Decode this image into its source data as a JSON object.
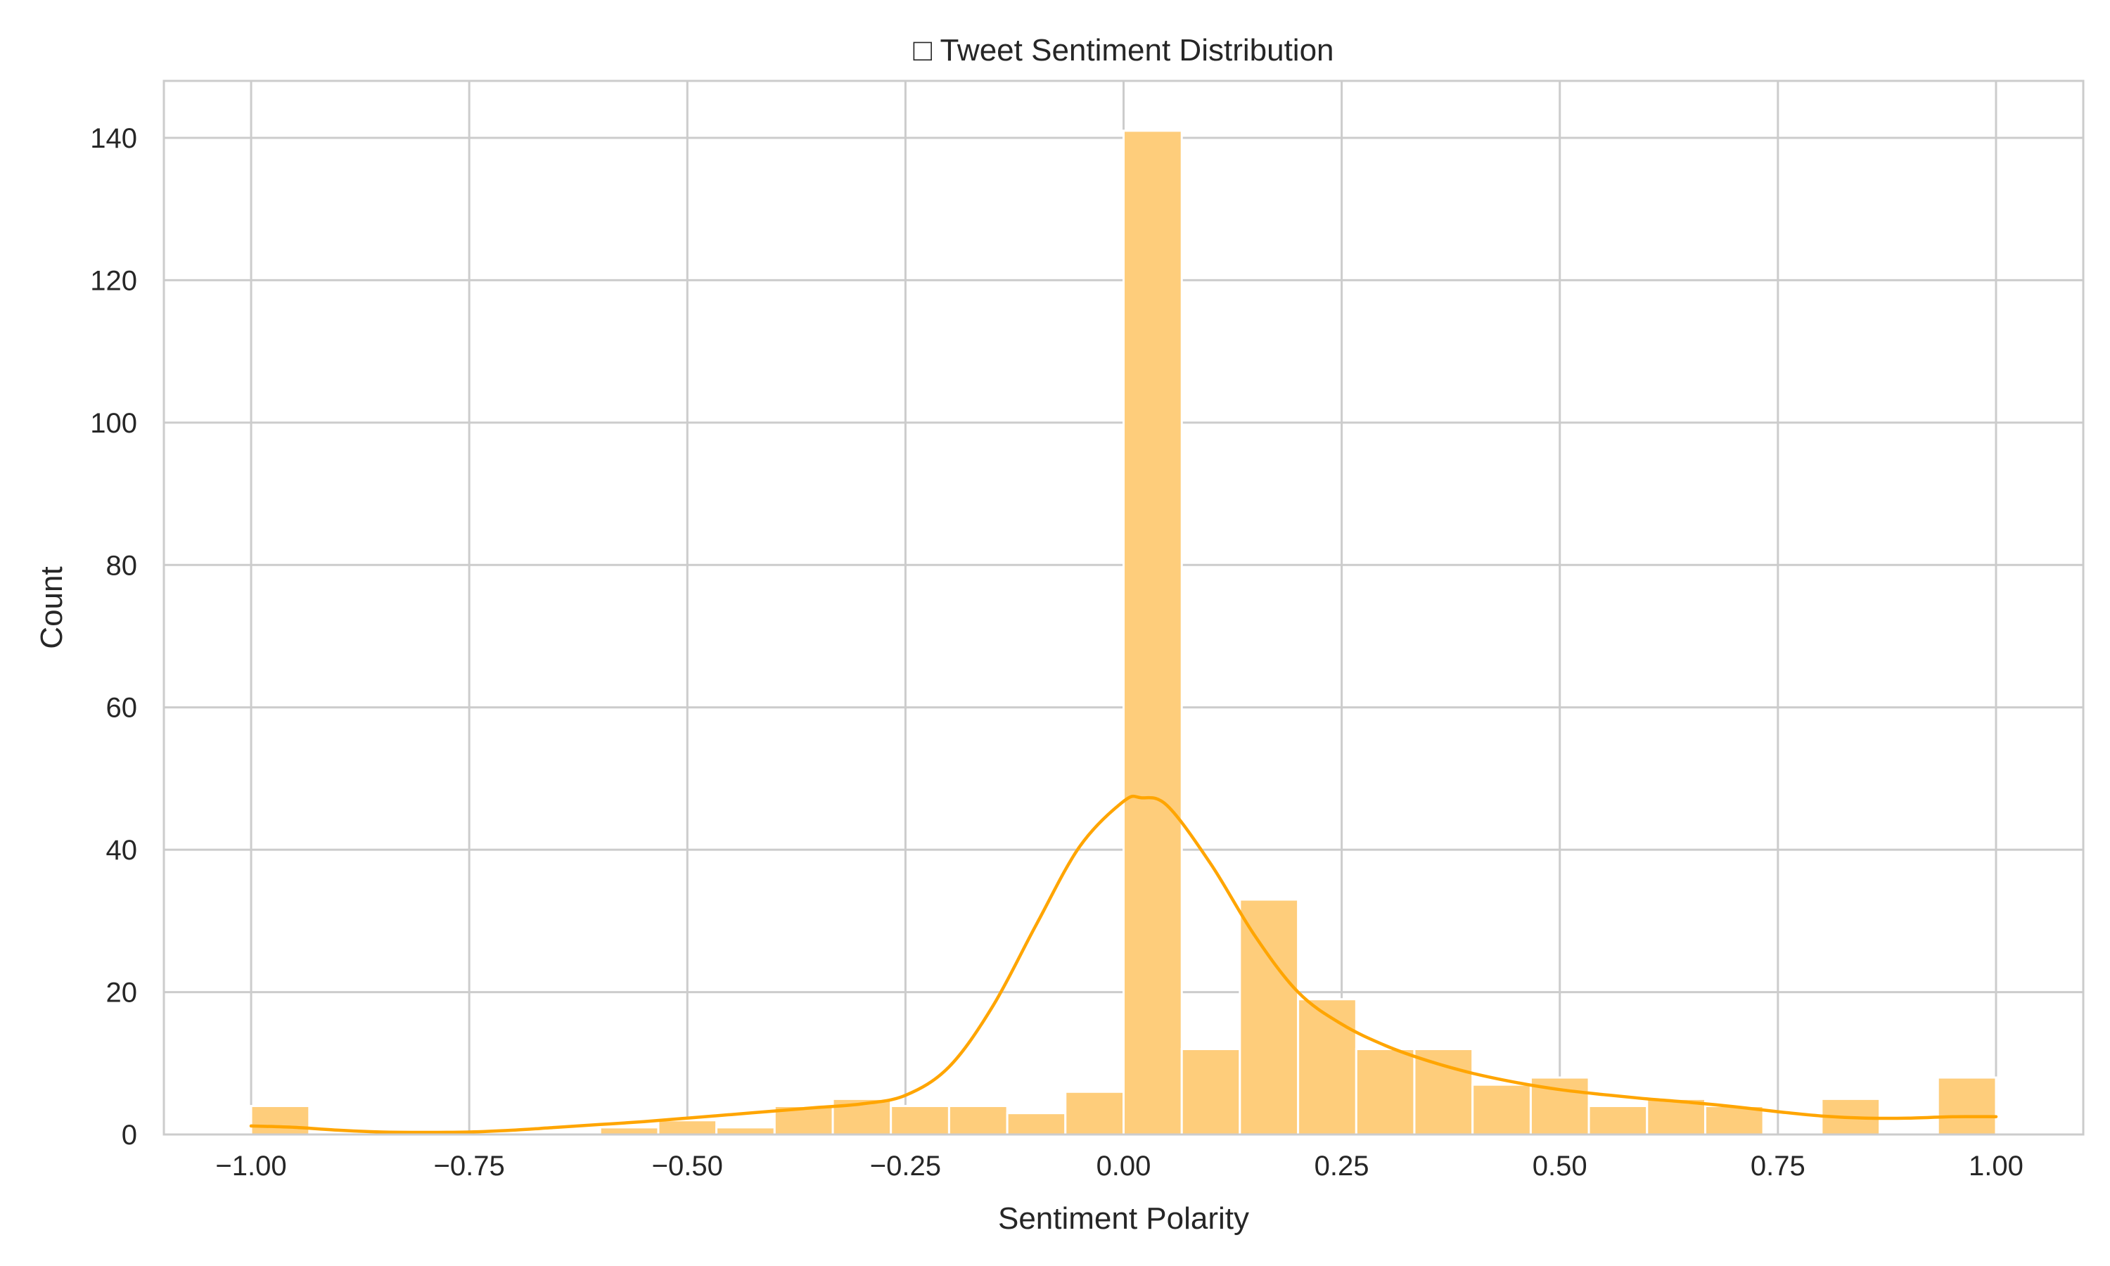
{
  "chart_data": {
    "type": "bar",
    "title": "□ Tweet Sentiment Distribution",
    "xlabel": "Sentiment Polarity",
    "ylabel": "Count",
    "xlim": [
      -1.1,
      1.1
    ],
    "ylim": [
      0,
      148
    ],
    "xticks": [
      -1.0,
      -0.75,
      -0.5,
      -0.25,
      0.0,
      0.25,
      0.5,
      0.75,
      1.0
    ],
    "xtick_labels": [
      "−1.00",
      "−0.75",
      "−0.50",
      "−0.25",
      "0.00",
      "0.25",
      "0.50",
      "0.75",
      "1.00"
    ],
    "yticks": [
      0,
      20,
      40,
      60,
      80,
      100,
      120,
      140
    ],
    "ytick_labels": [
      "0",
      "20",
      "40",
      "60",
      "80",
      "100",
      "120",
      "140"
    ],
    "grid": true,
    "bin_width": 0.0667,
    "bins": [
      {
        "x0": -1.0,
        "x1": -0.9333,
        "count": 4
      },
      {
        "x0": -0.9333,
        "x1": -0.8667,
        "count": 0
      },
      {
        "x0": -0.8667,
        "x1": -0.8,
        "count": 0
      },
      {
        "x0": -0.8,
        "x1": -0.7333,
        "count": 0
      },
      {
        "x0": -0.7333,
        "x1": -0.6667,
        "count": 0
      },
      {
        "x0": -0.6667,
        "x1": -0.6,
        "count": 0
      },
      {
        "x0": -0.6,
        "x1": -0.5333,
        "count": 1
      },
      {
        "x0": -0.5333,
        "x1": -0.4667,
        "count": 2
      },
      {
        "x0": -0.4667,
        "x1": -0.4,
        "count": 1
      },
      {
        "x0": -0.4,
        "x1": -0.3333,
        "count": 4
      },
      {
        "x0": -0.3333,
        "x1": -0.2667,
        "count": 5
      },
      {
        "x0": -0.2667,
        "x1": -0.2,
        "count": 4
      },
      {
        "x0": -0.2,
        "x1": -0.1333,
        "count": 4
      },
      {
        "x0": -0.1333,
        "x1": -0.0667,
        "count": 3
      },
      {
        "x0": -0.0667,
        "x1": 0.0,
        "count": 6
      },
      {
        "x0": 0.0,
        "x1": 0.0667,
        "count": 141
      },
      {
        "x0": 0.0667,
        "x1": 0.1333,
        "count": 12
      },
      {
        "x0": 0.1333,
        "x1": 0.2,
        "count": 33
      },
      {
        "x0": 0.2,
        "x1": 0.2667,
        "count": 19
      },
      {
        "x0": 0.2667,
        "x1": 0.3333,
        "count": 12
      },
      {
        "x0": 0.3333,
        "x1": 0.4,
        "count": 12
      },
      {
        "x0": 0.4,
        "x1": 0.4667,
        "count": 7
      },
      {
        "x0": 0.4667,
        "x1": 0.5333,
        "count": 8
      },
      {
        "x0": 0.5333,
        "x1": 0.6,
        "count": 4
      },
      {
        "x0": 0.6,
        "x1": 0.6667,
        "count": 5
      },
      {
        "x0": 0.6667,
        "x1": 0.7333,
        "count": 4
      },
      {
        "x0": 0.7333,
        "x1": 0.8,
        "count": 0
      },
      {
        "x0": 0.8,
        "x1": 0.8667,
        "count": 5
      },
      {
        "x0": 0.8667,
        "x1": 0.9333,
        "count": 0
      },
      {
        "x0": 0.9333,
        "x1": 1.0,
        "count": 8
      }
    ],
    "kde": {
      "x": [
        -1.0,
        -0.95,
        -0.9,
        -0.85,
        -0.8,
        -0.75,
        -0.7,
        -0.65,
        -0.6,
        -0.55,
        -0.5,
        -0.45,
        -0.4,
        -0.35,
        -0.3,
        -0.25,
        -0.2,
        -0.15,
        -0.1,
        -0.05,
        0.0,
        0.02,
        0.05,
        0.1,
        0.15,
        0.2,
        0.25,
        0.3,
        0.35,
        0.4,
        0.45,
        0.5,
        0.55,
        0.6,
        0.65,
        0.7,
        0.75,
        0.8,
        0.85,
        0.9,
        0.95,
        1.0
      ],
      "y": [
        1.2,
        1.0,
        0.6,
        0.35,
        0.3,
        0.35,
        0.6,
        1.0,
        1.4,
        1.8,
        2.3,
        2.8,
        3.3,
        3.8,
        4.3,
        5.5,
        9.5,
        18.0,
        29.5,
        40.5,
        46.8,
        47.3,
        46.2,
        38.0,
        28.0,
        20.0,
        15.5,
        12.5,
        10.3,
        8.6,
        7.3,
        6.3,
        5.6,
        5.0,
        4.5,
        3.9,
        3.2,
        2.6,
        2.3,
        2.3,
        2.5,
        2.5
      ]
    },
    "colors": {
      "bar_fill": "#fecd7b",
      "bar_edge": "#ffffff",
      "kde_line": "#ffa500",
      "grid": "#cccccc",
      "spine": "#cccccc",
      "text": "#262626"
    }
  }
}
